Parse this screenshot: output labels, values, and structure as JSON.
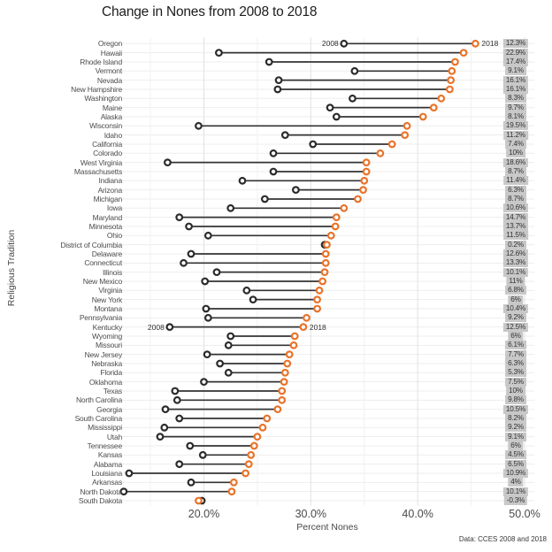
{
  "chart_data": {
    "type": "dumbbell",
    "title": "Change in Nones from 2008 to 2018",
    "xlabel": "Percent Nones",
    "ylabel": "Religious Tradition",
    "caption": "Data: CCES 2008 and 2018",
    "x_ticks": [
      20,
      30,
      40,
      50
    ],
    "x_tick_labels": [
      "20.0%",
      "30.0%",
      "40.0%",
      "50.0%"
    ],
    "x_minor_ticks": [
      15,
      25,
      35,
      45
    ],
    "xlim": [
      12.2,
      50.9
    ],
    "series": [
      "2008",
      "2018"
    ],
    "annotated_states": [
      "Oregon",
      "Kentucky"
    ],
    "legend_position": "inline-annotations",
    "grid": true,
    "rows": [
      {
        "state": "Oregon",
        "pct_2008": 33.1,
        "pct_2018": 45.4,
        "change_label": "12.3%"
      },
      {
        "state": "Hawaii",
        "pct_2008": 21.4,
        "pct_2018": 44.3,
        "change_label": "22.9%"
      },
      {
        "state": "Rhode Island",
        "pct_2008": 26.1,
        "pct_2018": 43.5,
        "change_label": "17.4%"
      },
      {
        "state": "Vermont",
        "pct_2008": 34.1,
        "pct_2018": 43.2,
        "change_label": "9.1%"
      },
      {
        "state": "Nevada",
        "pct_2008": 27.0,
        "pct_2018": 43.1,
        "change_label": "16.1%"
      },
      {
        "state": "New Hampshire",
        "pct_2008": 26.9,
        "pct_2018": 43.0,
        "change_label": "16.1%"
      },
      {
        "state": "Washington",
        "pct_2008": 33.9,
        "pct_2018": 42.2,
        "change_label": "8.3%"
      },
      {
        "state": "Maine",
        "pct_2008": 31.8,
        "pct_2018": 41.5,
        "change_label": "9.7%"
      },
      {
        "state": "Alaska",
        "pct_2008": 32.4,
        "pct_2018": 40.5,
        "change_label": "8.1%"
      },
      {
        "state": "Wisconsin",
        "pct_2008": 19.5,
        "pct_2018": 39.0,
        "change_label": "19.5%"
      },
      {
        "state": "Idaho",
        "pct_2008": 27.6,
        "pct_2018": 38.8,
        "change_label": "11.2%"
      },
      {
        "state": "California",
        "pct_2008": 30.2,
        "pct_2018": 37.6,
        "change_label": "7.4%"
      },
      {
        "state": "Colorado",
        "pct_2008": 26.5,
        "pct_2018": 36.5,
        "change_label": "10%"
      },
      {
        "state": "West Virginia",
        "pct_2008": 16.6,
        "pct_2018": 35.2,
        "change_label": "18.6%"
      },
      {
        "state": "Massachusetts",
        "pct_2008": 26.5,
        "pct_2018": 35.2,
        "change_label": "8.7%"
      },
      {
        "state": "Indiana",
        "pct_2008": 23.6,
        "pct_2018": 35.0,
        "change_label": "11.4%"
      },
      {
        "state": "Arizona",
        "pct_2008": 28.6,
        "pct_2018": 34.9,
        "change_label": "6.3%"
      },
      {
        "state": "Michigan",
        "pct_2008": 25.7,
        "pct_2018": 34.4,
        "change_label": "8.7%"
      },
      {
        "state": "Iowa",
        "pct_2008": 22.5,
        "pct_2018": 33.1,
        "change_label": "10.6%"
      },
      {
        "state": "Maryland",
        "pct_2008": 17.7,
        "pct_2018": 32.4,
        "change_label": "14.7%"
      },
      {
        "state": "Minnesota",
        "pct_2008": 18.6,
        "pct_2018": 32.3,
        "change_label": "13.7%"
      },
      {
        "state": "Ohio",
        "pct_2008": 20.4,
        "pct_2018": 31.9,
        "change_label": "11.5%"
      },
      {
        "state": "District of Columbia",
        "pct_2008": 31.3,
        "pct_2018": 31.5,
        "change_label": "0.2%"
      },
      {
        "state": "Delaware",
        "pct_2008": 18.8,
        "pct_2018": 31.4,
        "change_label": "12.6%"
      },
      {
        "state": "Connecticut",
        "pct_2008": 18.1,
        "pct_2018": 31.4,
        "change_label": "13.3%"
      },
      {
        "state": "Illinois",
        "pct_2008": 21.2,
        "pct_2018": 31.3,
        "change_label": "10.1%"
      },
      {
        "state": "New Mexico",
        "pct_2008": 20.1,
        "pct_2018": 31.1,
        "change_label": "11%"
      },
      {
        "state": "Virginia",
        "pct_2008": 24.0,
        "pct_2018": 30.8,
        "change_label": "6.8%"
      },
      {
        "state": "New York",
        "pct_2008": 24.6,
        "pct_2018": 30.6,
        "change_label": "6%"
      },
      {
        "state": "Montana",
        "pct_2008": 20.2,
        "pct_2018": 30.6,
        "change_label": "10.4%"
      },
      {
        "state": "Pennsylvania",
        "pct_2008": 20.4,
        "pct_2018": 29.6,
        "change_label": "9.2%"
      },
      {
        "state": "Kentucky",
        "pct_2008": 16.8,
        "pct_2018": 29.3,
        "change_label": "12.5%"
      },
      {
        "state": "Wyoming",
        "pct_2008": 22.5,
        "pct_2018": 28.5,
        "change_label": "6%"
      },
      {
        "state": "Missouri",
        "pct_2008": 22.3,
        "pct_2018": 28.4,
        "change_label": "6.1%"
      },
      {
        "state": "New Jersey",
        "pct_2008": 20.3,
        "pct_2018": 28.0,
        "change_label": "7.7%"
      },
      {
        "state": "Nebraska",
        "pct_2008": 21.5,
        "pct_2018": 27.8,
        "change_label": "6.3%"
      },
      {
        "state": "Florida",
        "pct_2008": 22.3,
        "pct_2018": 27.6,
        "change_label": "5.3%"
      },
      {
        "state": "Oklahoma",
        "pct_2008": 20.0,
        "pct_2018": 27.5,
        "change_label": "7.5%"
      },
      {
        "state": "Texas",
        "pct_2008": 17.3,
        "pct_2018": 27.3,
        "change_label": "10%"
      },
      {
        "state": "North Carolina",
        "pct_2008": 17.5,
        "pct_2018": 27.3,
        "change_label": "9.8%"
      },
      {
        "state": "Georgia",
        "pct_2008": 16.4,
        "pct_2018": 26.9,
        "change_label": "10.5%"
      },
      {
        "state": "South Carolina",
        "pct_2008": 17.7,
        "pct_2018": 25.9,
        "change_label": "8.2%"
      },
      {
        "state": "Mississippi",
        "pct_2008": 16.3,
        "pct_2018": 25.5,
        "change_label": "9.2%"
      },
      {
        "state": "Utah",
        "pct_2008": 15.9,
        "pct_2018": 25.0,
        "change_label": "9.1%"
      },
      {
        "state": "Tennessee",
        "pct_2008": 18.7,
        "pct_2018": 24.7,
        "change_label": "6%"
      },
      {
        "state": "Kansas",
        "pct_2008": 19.9,
        "pct_2018": 24.4,
        "change_label": "4.5%"
      },
      {
        "state": "Alabama",
        "pct_2008": 17.7,
        "pct_2018": 24.2,
        "change_label": "6.5%"
      },
      {
        "state": "Louisiana",
        "pct_2008": 13.0,
        "pct_2018": 23.9,
        "change_label": "10.9%"
      },
      {
        "state": "Arkansas",
        "pct_2008": 18.8,
        "pct_2018": 22.8,
        "change_label": "4%"
      },
      {
        "state": "North Dakota",
        "pct_2008": 12.5,
        "pct_2018": 22.6,
        "change_label": "10.1%"
      },
      {
        "state": "South Dakota",
        "pct_2008": 19.8,
        "pct_2018": 19.5,
        "change_label": "-0.3%"
      }
    ]
  },
  "colors": {
    "dot_2008": "#2b2b2b",
    "dot_2018": "#e8732a",
    "connector_line": "#333333",
    "value_badge_bg": "#c8c8c8",
    "grid_major": "#e2e2e2",
    "grid_minor": "#f1f1f1",
    "grid_row": "#ededed",
    "background": "#ffffff"
  }
}
